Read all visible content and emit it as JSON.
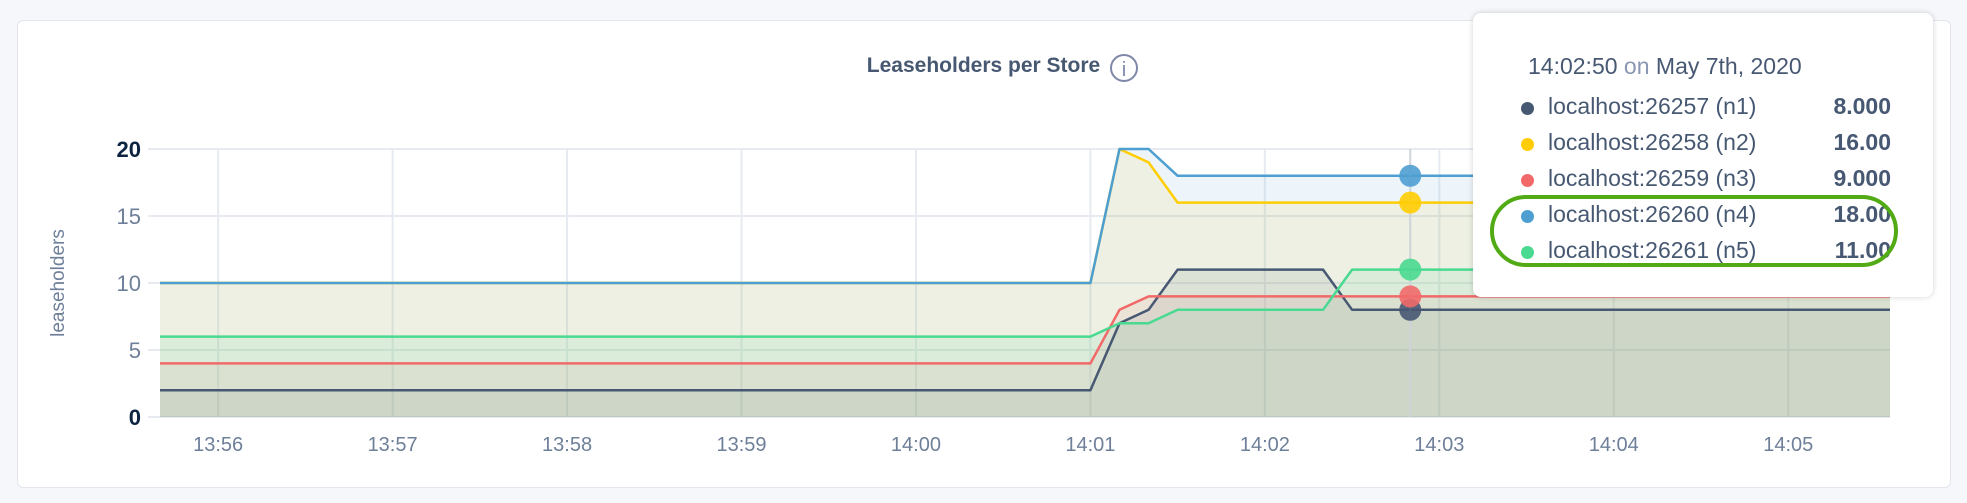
{
  "chart_data": {
    "type": "area",
    "title": "Leaseholders per Store",
    "info_icon": "info-icon",
    "ylabel": "leaseholders",
    "xlabel": "",
    "ylim": [
      0,
      20
    ],
    "yticks": [
      "0",
      "5",
      "10",
      "15",
      "20"
    ],
    "xlim": [
      "13:55:40",
      "14:05:35"
    ],
    "xticks": [
      "13:56",
      "13:57",
      "13:58",
      "13:59",
      "14:00",
      "14:01",
      "14:02",
      "14:03",
      "14:04",
      "14:05"
    ],
    "grid": true,
    "series": [
      {
        "name": "localhost:26257 (n1)",
        "color": "#475872",
        "points": [
          [
            "13:55:40",
            2
          ],
          [
            "14:01:00",
            2
          ],
          [
            "14:01:10",
            7
          ],
          [
            "14:01:20",
            8
          ],
          [
            "14:01:30",
            11
          ],
          [
            "14:02:20",
            11
          ],
          [
            "14:02:30",
            8
          ],
          [
            "14:05:35",
            8
          ]
        ]
      },
      {
        "name": "localhost:26258 (n2)",
        "color": "#ffcd02",
        "points": [
          [
            "13:55:40",
            10
          ],
          [
            "14:01:00",
            10
          ],
          [
            "14:01:10",
            20
          ],
          [
            "14:01:20",
            19
          ],
          [
            "14:01:30",
            16
          ],
          [
            "14:05:35",
            16
          ]
        ]
      },
      {
        "name": "localhost:26259 (n3)",
        "color": "#f16969",
        "points": [
          [
            "13:55:40",
            4
          ],
          [
            "14:01:00",
            4
          ],
          [
            "14:01:10",
            8
          ],
          [
            "14:01:20",
            9
          ],
          [
            "14:05:35",
            9
          ]
        ]
      },
      {
        "name": "localhost:26260 (n4)",
        "color": "#4e9fd1",
        "points": [
          [
            "13:55:40",
            10
          ],
          [
            "14:01:00",
            10
          ],
          [
            "14:01:10",
            20
          ],
          [
            "14:01:20",
            20
          ],
          [
            "14:01:30",
            18
          ],
          [
            "14:05:35",
            18
          ]
        ]
      },
      {
        "name": "localhost:26261 (n5)",
        "color": "#49d990",
        "points": [
          [
            "13:55:40",
            6
          ],
          [
            "14:01:00",
            6
          ],
          [
            "14:01:10",
            7
          ],
          [
            "14:01:20",
            7
          ],
          [
            "14:01:30",
            8
          ],
          [
            "14:02:20",
            8
          ],
          [
            "14:02:30",
            11
          ],
          [
            "14:05:35",
            11
          ]
        ]
      }
    ],
    "hover": {
      "time": "14:02:50",
      "on": "on",
      "date": "May 7th, 2020",
      "rows": [
        {
          "label": "localhost:26257 (n1)",
          "value": "8.000",
          "color": "#475872"
        },
        {
          "label": "localhost:26258 (n2)",
          "value": "16.00",
          "color": "#ffcd02"
        },
        {
          "label": "localhost:26259 (n3)",
          "value": "9.000",
          "color": "#f16969"
        },
        {
          "label": "localhost:26260 (n4)",
          "value": "18.00",
          "color": "#4e9fd1"
        },
        {
          "label": "localhost:26261 (n5)",
          "value": "11.00",
          "color": "#49d990"
        }
      ],
      "highlighted_rows": [
        3,
        4
      ],
      "highlight_color": "#52ab15"
    }
  }
}
